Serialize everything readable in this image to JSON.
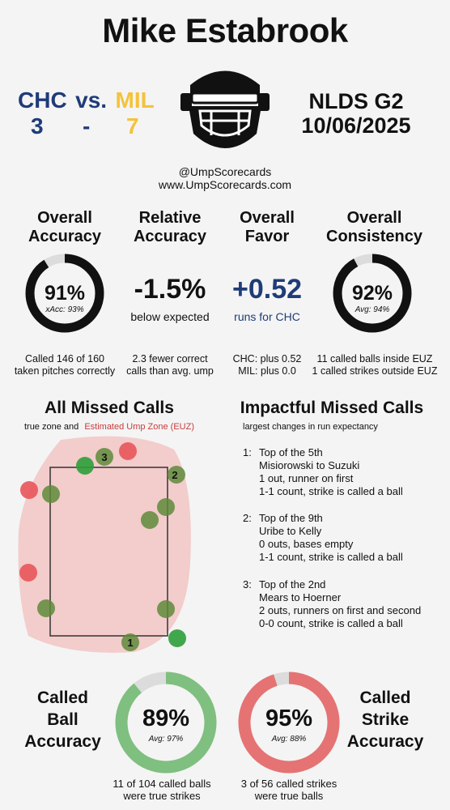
{
  "header": {
    "umpire_name": "Mike Estabrook",
    "away_team": "CHC",
    "vs": "vs.",
    "home_team": "MIL",
    "away_score": "3",
    "dash": "-",
    "home_score": "7",
    "series_game": "NLDS  G2",
    "date": "10/06/2025",
    "handle": "@UmpScorecards",
    "website": "www.UmpScorecards.com",
    "colors": {
      "away": "#1f3c78",
      "home": "#f3c33b",
      "accent_red": "#c83c3c"
    }
  },
  "stats": {
    "overall_accuracy": {
      "heading_line1": "Overall",
      "heading_line2": "Accuracy",
      "value": "91%",
      "xacc": "xAcc: 93%",
      "fill_fraction": 0.91,
      "desc_line1": "Called 146 of 160",
      "desc_line2": "taken pitches correctly"
    },
    "relative_accuracy": {
      "heading_line1": "Relative",
      "heading_line2": "Accuracy",
      "value": "-1.5%",
      "sub": "below expected",
      "desc_line1": "2.3 fewer correct",
      "desc_line2": "calls than avg. ump"
    },
    "overall_favor": {
      "heading_line1": "Overall",
      "heading_line2": "Favor",
      "value": "+0.52",
      "sub": "runs for CHC",
      "desc_line1": "CHC: plus 0.52",
      "desc_line2": "MIL: plus 0.0"
    },
    "overall_consistency": {
      "heading_line1": "Overall",
      "heading_line2": "Consistency",
      "value": "92%",
      "avg": "Avg: 94%",
      "fill_fraction": 0.92,
      "desc_line1": "11 called balls inside EUZ",
      "desc_line2": "1 called strikes outside EUZ"
    }
  },
  "missed_calls": {
    "title": "All Missed Calls",
    "subtitle_prefix": "true zone and",
    "subtitle_euz": "Estimated Ump Zone (EUZ)",
    "labels": [
      "1",
      "2",
      "3"
    ]
  },
  "impactful": {
    "title": "Impactful Missed Calls",
    "subtitle": "largest changes in run expectancy",
    "items": [
      {
        "num": "1:",
        "lines": [
          "Top of the 5th",
          "Misiorowski to Suzuki",
          "1 out, runner on first",
          "1-1 count, strike is called a ball"
        ]
      },
      {
        "num": "2:",
        "lines": [
          "Top of the 9th",
          "Uribe to Kelly",
          "0 outs, bases empty",
          "1-1 count, strike is called a ball"
        ]
      },
      {
        "num": "3:",
        "lines": [
          "Top of the 2nd",
          "Mears to Hoerner",
          "2 outs, runners on first and second",
          "0-0 count, strike is called a ball"
        ]
      }
    ]
  },
  "called_ball": {
    "label_line1": "Called",
    "label_line2": "Ball",
    "label_line3": "Accuracy",
    "value": "89%",
    "avg": "Avg: 97%",
    "fill_fraction": 0.89,
    "desc_line1": "11 of 104 called balls",
    "desc_line2": "were true strikes",
    "color": "#7fbf7f"
  },
  "called_strike": {
    "label_line1": "Called",
    "label_line2": "Strike",
    "label_line3": "Accuracy",
    "value": "95%",
    "avg": "Avg: 88%",
    "fill_fraction": 0.95,
    "desc_line1": "3 of 56 called strikes",
    "desc_line2": "were true balls",
    "color": "#e57373"
  }
}
